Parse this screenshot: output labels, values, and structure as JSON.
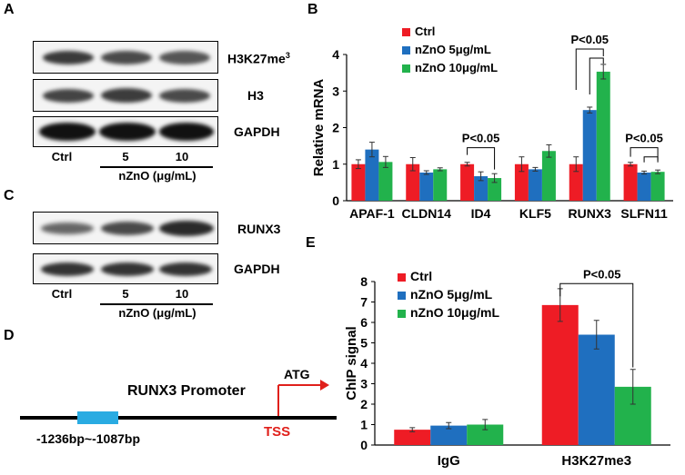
{
  "panels": {
    "A": {
      "letter": "A",
      "rows": [
        "H3K27me3",
        "H3",
        "GAPDH"
      ],
      "lanes": [
        "Ctrl",
        "5",
        "10"
      ],
      "xlabel": "nZnO (μg/mL)"
    },
    "C": {
      "letter": "C",
      "rows": [
        "RUNX3",
        "GAPDH"
      ],
      "lanes": [
        "Ctrl",
        "5",
        "10"
      ],
      "xlabel": "nZnO (μg/mL)"
    },
    "D": {
      "letter": "D",
      "promoter_label": "RUNX3 Promoter",
      "atg_label": "ATG",
      "tss_label": "TSS",
      "region_label": "-1236bp~-1087bp"
    },
    "B": {
      "letter": "B"
    },
    "E": {
      "letter": "E"
    }
  },
  "colors": {
    "ctrl": "#ee1c25",
    "low": "#1f6fbf",
    "high": "#22b24c",
    "tss": "#e0201b",
    "region": "#29abe2"
  },
  "chart_data": [
    {
      "id": "B",
      "type": "bar",
      "ylabel": "Relative mRNA",
      "ylim": [
        0,
        4
      ],
      "yticks": [
        0,
        1,
        2,
        3,
        4
      ],
      "categories": [
        "APAF-1",
        "CLDN14",
        "ID4",
        "KLF5",
        "RUNX3",
        "SLFN11"
      ],
      "series": [
        {
          "name": "Ctrl",
          "values": [
            1.0,
            1.0,
            1.0,
            1.0,
            1.0,
            1.0
          ],
          "errors": [
            0.12,
            0.18,
            0.05,
            0.2,
            0.2,
            0.05
          ]
        },
        {
          "name": "nZnO 5μg/mL",
          "values": [
            1.4,
            0.77,
            0.67,
            0.86,
            2.48,
            0.77
          ],
          "errors": [
            0.2,
            0.05,
            0.12,
            0.05,
            0.08,
            0.04
          ]
        },
        {
          "name": "nZnO 10μg/mL",
          "values": [
            1.06,
            0.86,
            0.62,
            1.36,
            3.53,
            0.79
          ],
          "errors": [
            0.15,
            0.04,
            0.12,
            0.17,
            0.2,
            0.05
          ]
        }
      ],
      "legend": [
        "Ctrl",
        "nZnO 5μg/mL",
        "nZnO 10μg/mL"
      ],
      "annotations": [
        "P<0.05",
        "P<0.05",
        "P<0.05"
      ]
    },
    {
      "id": "E",
      "type": "bar",
      "ylabel": "ChIP signal",
      "ylim": [
        0,
        8
      ],
      "yticks": [
        0,
        1,
        2,
        3,
        4,
        5,
        6,
        7,
        8
      ],
      "categories": [
        "IgG",
        "H3K27me3"
      ],
      "series": [
        {
          "name": "Ctrl",
          "values": [
            0.75,
            6.85
          ],
          "errors": [
            0.1,
            0.8
          ]
        },
        {
          "name": "nZnO 5μg/mL",
          "values": [
            0.95,
            5.4
          ],
          "errors": [
            0.15,
            0.7
          ]
        },
        {
          "name": "nZnO 10μg/mL",
          "values": [
            1.0,
            2.85
          ],
          "errors": [
            0.25,
            0.85
          ]
        }
      ],
      "legend": [
        "Ctrl",
        "nZnO 5μg/mL",
        "nZnO 10μg/mL"
      ],
      "annotations": [
        "P<0.05"
      ]
    }
  ]
}
